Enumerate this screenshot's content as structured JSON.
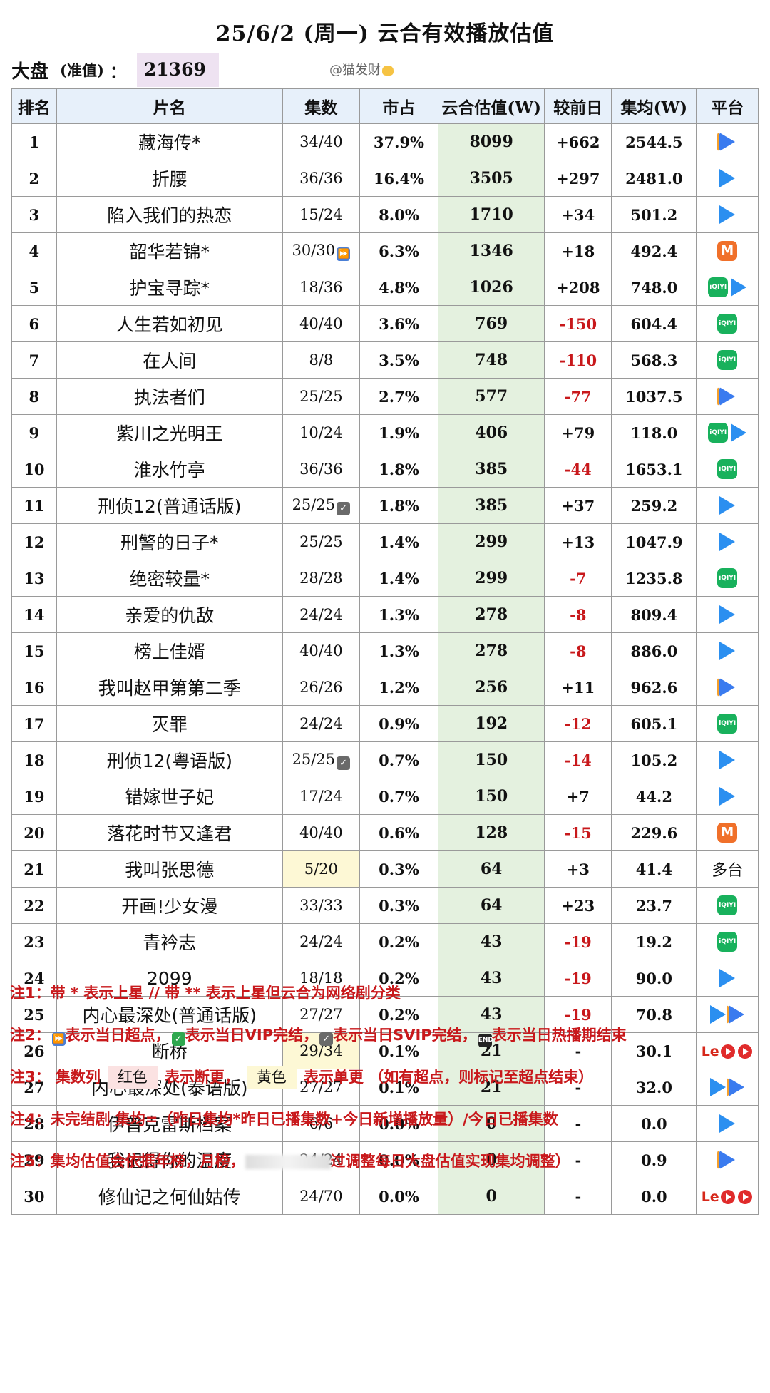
{
  "title": "25/6/2 (周一) 云合有效播放估值",
  "market": {
    "label": "大盘",
    "sub": "(准值)",
    "colon": "：",
    "value": "21369"
  },
  "watermark": "@猫发财",
  "headers": [
    "排名",
    "片名",
    "集数",
    "市占",
    "云合估值(W)",
    "较前日",
    "集均(W)",
    "平台"
  ],
  "rows": [
    {
      "rank": "1",
      "name": "藏海传*",
      "eps": "34/40",
      "mark": "",
      "share": "37.9%",
      "est": "8099",
      "chg": "+662",
      "avg": "2544.5",
      "plat": [
        "youku"
      ]
    },
    {
      "rank": "2",
      "name": "折腰",
      "eps": "36/36",
      "mark": "",
      "share": "16.4%",
      "est": "3505",
      "chg": "+297",
      "avg": "2481.0",
      "plat": [
        "tencent"
      ]
    },
    {
      "rank": "3",
      "name": "陷入我们的热恋",
      "eps": "15/24",
      "mark": "",
      "share": "8.0%",
      "est": "1710",
      "chg": "+34",
      "avg": "501.2",
      "plat": [
        "tencent"
      ]
    },
    {
      "rank": "4",
      "name": "韶华若锦*",
      "eps": "30/30",
      "mark": "ff",
      "share": "6.3%",
      "est": "1346",
      "chg": "+18",
      "avg": "492.4",
      "plat": [
        "mango"
      ]
    },
    {
      "rank": "5",
      "name": "护宝寻踪*",
      "eps": "18/36",
      "mark": "",
      "share": "4.8%",
      "est": "1026",
      "chg": "+208",
      "avg": "748.0",
      "plat": [
        "iqiyi",
        "tencent"
      ]
    },
    {
      "rank": "6",
      "name": "人生若如初见",
      "eps": "40/40",
      "mark": "",
      "share": "3.6%",
      "est": "769",
      "chg": "-150",
      "avg": "604.4",
      "plat": [
        "iqiyi"
      ]
    },
    {
      "rank": "7",
      "name": "在人间",
      "eps": "8/8",
      "mark": "",
      "share": "3.5%",
      "est": "748",
      "chg": "-110",
      "avg": "568.3",
      "plat": [
        "iqiyi"
      ]
    },
    {
      "rank": "8",
      "name": "执法者们",
      "eps": "25/25",
      "mark": "",
      "share": "2.7%",
      "est": "577",
      "chg": "-77",
      "avg": "1037.5",
      "plat": [
        "youku"
      ]
    },
    {
      "rank": "9",
      "name": "紫川之光明王",
      "eps": "10/24",
      "mark": "",
      "share": "1.9%",
      "est": "406",
      "chg": "+79",
      "avg": "118.0",
      "plat": [
        "iqiyi",
        "tencent"
      ]
    },
    {
      "rank": "10",
      "name": "淮水竹亭",
      "eps": "36/36",
      "mark": "",
      "share": "1.8%",
      "est": "385",
      "chg": "-44",
      "avg": "1653.1",
      "plat": [
        "iqiyi"
      ]
    },
    {
      "rank": "11",
      "name": "刑侦12(普通话版)",
      "eps": "25/25",
      "mark": "svip",
      "share": "1.8%",
      "est": "385",
      "chg": "+37",
      "avg": "259.2",
      "plat": [
        "tencent"
      ]
    },
    {
      "rank": "12",
      "name": "刑警的日子*",
      "eps": "25/25",
      "mark": "",
      "share": "1.4%",
      "est": "299",
      "chg": "+13",
      "avg": "1047.9",
      "plat": [
        "tencent"
      ]
    },
    {
      "rank": "13",
      "name": "绝密较量*",
      "eps": "28/28",
      "mark": "",
      "share": "1.4%",
      "est": "299",
      "chg": "-7",
      "avg": "1235.8",
      "plat": [
        "iqiyi"
      ]
    },
    {
      "rank": "14",
      "name": "亲爱的仇敌",
      "eps": "24/24",
      "mark": "",
      "share": "1.3%",
      "est": "278",
      "chg": "-8",
      "avg": "809.4",
      "plat": [
        "tencent"
      ]
    },
    {
      "rank": "15",
      "name": "榜上佳婿",
      "eps": "40/40",
      "mark": "",
      "share": "1.3%",
      "est": "278",
      "chg": "-8",
      "avg": "886.0",
      "plat": [
        "tencent"
      ]
    },
    {
      "rank": "16",
      "name": "我叫赵甲第第二季",
      "eps": "26/26",
      "mark": "",
      "share": "1.2%",
      "est": "256",
      "chg": "+11",
      "avg": "962.6",
      "plat": [
        "youku"
      ]
    },
    {
      "rank": "17",
      "name": "灭罪",
      "eps": "24/24",
      "mark": "",
      "share": "0.9%",
      "est": "192",
      "chg": "-12",
      "avg": "605.1",
      "plat": [
        "iqiyi"
      ]
    },
    {
      "rank": "18",
      "name": "刑侦12(粤语版)",
      "eps": "25/25",
      "mark": "svip",
      "share": "0.7%",
      "est": "150",
      "chg": "-14",
      "avg": "105.2",
      "plat": [
        "tencent"
      ]
    },
    {
      "rank": "19",
      "name": "错嫁世子妃",
      "eps": "17/24",
      "mark": "",
      "share": "0.7%",
      "est": "150",
      "chg": "+7",
      "avg": "44.2",
      "plat": [
        "tencent"
      ]
    },
    {
      "rank": "20",
      "name": "落花时节又逢君",
      "eps": "40/40",
      "mark": "",
      "share": "0.6%",
      "est": "128",
      "chg": "-15",
      "avg": "229.6",
      "plat": [
        "mango"
      ]
    },
    {
      "rank": "21",
      "name": "我叫张思德",
      "eps": "5/20",
      "mark": "",
      "hl": true,
      "share": "0.3%",
      "est": "64",
      "chg": "+3",
      "avg": "41.4",
      "plat": [],
      "plat_text": "多台"
    },
    {
      "rank": "22",
      "name": "开画!少女漫",
      "eps": "33/33",
      "mark": "",
      "share": "0.3%",
      "est": "64",
      "chg": "+23",
      "avg": "23.7",
      "plat": [
        "iqiyi"
      ]
    },
    {
      "rank": "23",
      "name": "青衿志",
      "eps": "24/24",
      "mark": "",
      "share": "0.2%",
      "est": "43",
      "chg": "-19",
      "avg": "19.2",
      "plat": [
        "iqiyi"
      ]
    },
    {
      "rank": "24",
      "name": "2099",
      "eps": "18/18",
      "mark": "",
      "share": "0.2%",
      "est": "43",
      "chg": "-19",
      "avg": "90.0",
      "plat": [
        "tencent"
      ]
    },
    {
      "rank": "25",
      "name": "内心最深处(普通话版)",
      "eps": "27/27",
      "mark": "",
      "share": "0.2%",
      "est": "43",
      "chg": "-19",
      "avg": "70.8",
      "plat": [
        "tencent",
        "youku"
      ]
    },
    {
      "rank": "26",
      "name": "断桥",
      "eps": "29/34",
      "mark": "",
      "hl": true,
      "share": "0.1%",
      "est": "21",
      "chg": "-",
      "avg": "30.1",
      "plat": [
        "le"
      ]
    },
    {
      "rank": "27",
      "name": "内心最深处(泰语版)",
      "eps": "27/27",
      "mark": "",
      "share": "0.1%",
      "est": "21",
      "chg": "-",
      "avg": "32.0",
      "plat": [
        "tencent",
        "youku"
      ]
    },
    {
      "rank": "28",
      "name": "伊普克雷斯档案",
      "eps": "6/6",
      "mark": "",
      "share": "0.0%",
      "est": "0",
      "chg": "-",
      "avg": "0.0",
      "plat": [
        "tencent"
      ]
    },
    {
      "rank": "29",
      "name": "我记得你的温度",
      "eps": "24/24",
      "mark": "",
      "share": "0.0%",
      "est": "0",
      "chg": "-",
      "avg": "0.9",
      "plat": [
        "youku"
      ]
    },
    {
      "rank": "30",
      "name": "修仙记之何仙姑传",
      "eps": "24/70",
      "mark": "",
      "share": "0.0%",
      "est": "0",
      "chg": "-",
      "avg": "0.0",
      "plat": [
        "le"
      ]
    }
  ],
  "notes": {
    "n1": "注1：带 * 表示上星 // 带 ** 表示上星但云合为网络剧分类",
    "n2_a": "注2：",
    "n2_b": "表示当日超点，",
    "n2_c": "表示当日VIP完结，",
    "n2_d": "表示当日SVIP完结，",
    "n2_e": "表示当日热播期结束",
    "n3_a": "注3：  集数列",
    "n3_red": "红色",
    "n3_b": "表示断更，",
    "n3_yel": "黄色",
    "n3_c": "表示单更 （如有超点，则标记至超点结束）",
    "n4": "注4：未完结剧 集均=（昨日集均*昨日已播集数+今日新增播放量）/今日已播集数",
    "n5_a": "注5：集均估值会依据年榜，月榜，",
    "n5_b": "过调整每日大盘估值实现集均调整）"
  },
  "icons": {
    "youku": "youku-icon",
    "tencent": "tencent-video-icon",
    "iqiyi": "iqiyi-icon",
    "mango": "mango-tv-icon",
    "le": "letv-icon"
  },
  "colors": {
    "estimate_bg": "#e4f1df",
    "header_bg": "#e7f0fa",
    "negative": "#c8181b",
    "single_update": "#fdf8d5"
  }
}
